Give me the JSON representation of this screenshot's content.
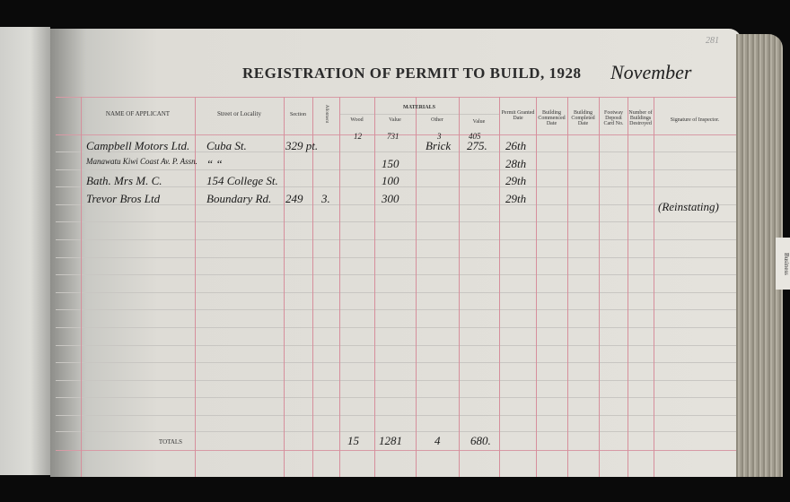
{
  "page": {
    "title": "REGISTRATION OF PERMIT TO BUILD, 1928",
    "month": "November",
    "page_number": "281",
    "tab_label": "Business"
  },
  "columns": {
    "name": "NAME OF APPLICANT",
    "street": "Street or Locality",
    "section": "Section",
    "allotment": "Allotment",
    "materials": "MATERIALS",
    "wood": "Wood",
    "value1": "Value",
    "other": "Other",
    "value2": "Value",
    "permit": "Permit Granted Date",
    "commenced": "Building Commenced Date",
    "completed": "Building Completed Date",
    "footway": "Footway Deposit Card No.",
    "destroyed": "Number of Buildings Destroyed",
    "signature": "Signature of Inspector."
  },
  "carried": {
    "wood": "12",
    "value1": "731",
    "other": "3",
    "value2": "405"
  },
  "rows": [
    {
      "name": "Campbell Motors Ltd.",
      "street": "Cuba St.",
      "section": "329 pt.",
      "allotment": "",
      "value1": "",
      "other": "Brick",
      "value2": "275.",
      "permit": "26th",
      "signature": ""
    },
    {
      "name": "Manawatu Kiwi Coast Av. P. Assn.",
      "street": "“  “",
      "section": "",
      "allotment": "",
      "value1": "150",
      "other": "",
      "value2": "",
      "permit": "28th",
      "signature": ""
    },
    {
      "name": "Bath.   Mrs M. C.",
      "street": "154 College St.",
      "section": "",
      "allotment": "",
      "value1": "100",
      "other": "",
      "value2": "",
      "permit": "29th",
      "signature": ""
    },
    {
      "name": "Trevor Bros Ltd",
      "street": "Boundary Rd.",
      "section": "249",
      "allotment": "3.",
      "value1": "300",
      "other": "",
      "value2": "",
      "permit": "29th",
      "signature": "(Reinstating)"
    }
  ],
  "totals": {
    "label": "TOTALS",
    "wood": "15",
    "value1": "1281",
    "other": "4",
    "value2": "680."
  }
}
